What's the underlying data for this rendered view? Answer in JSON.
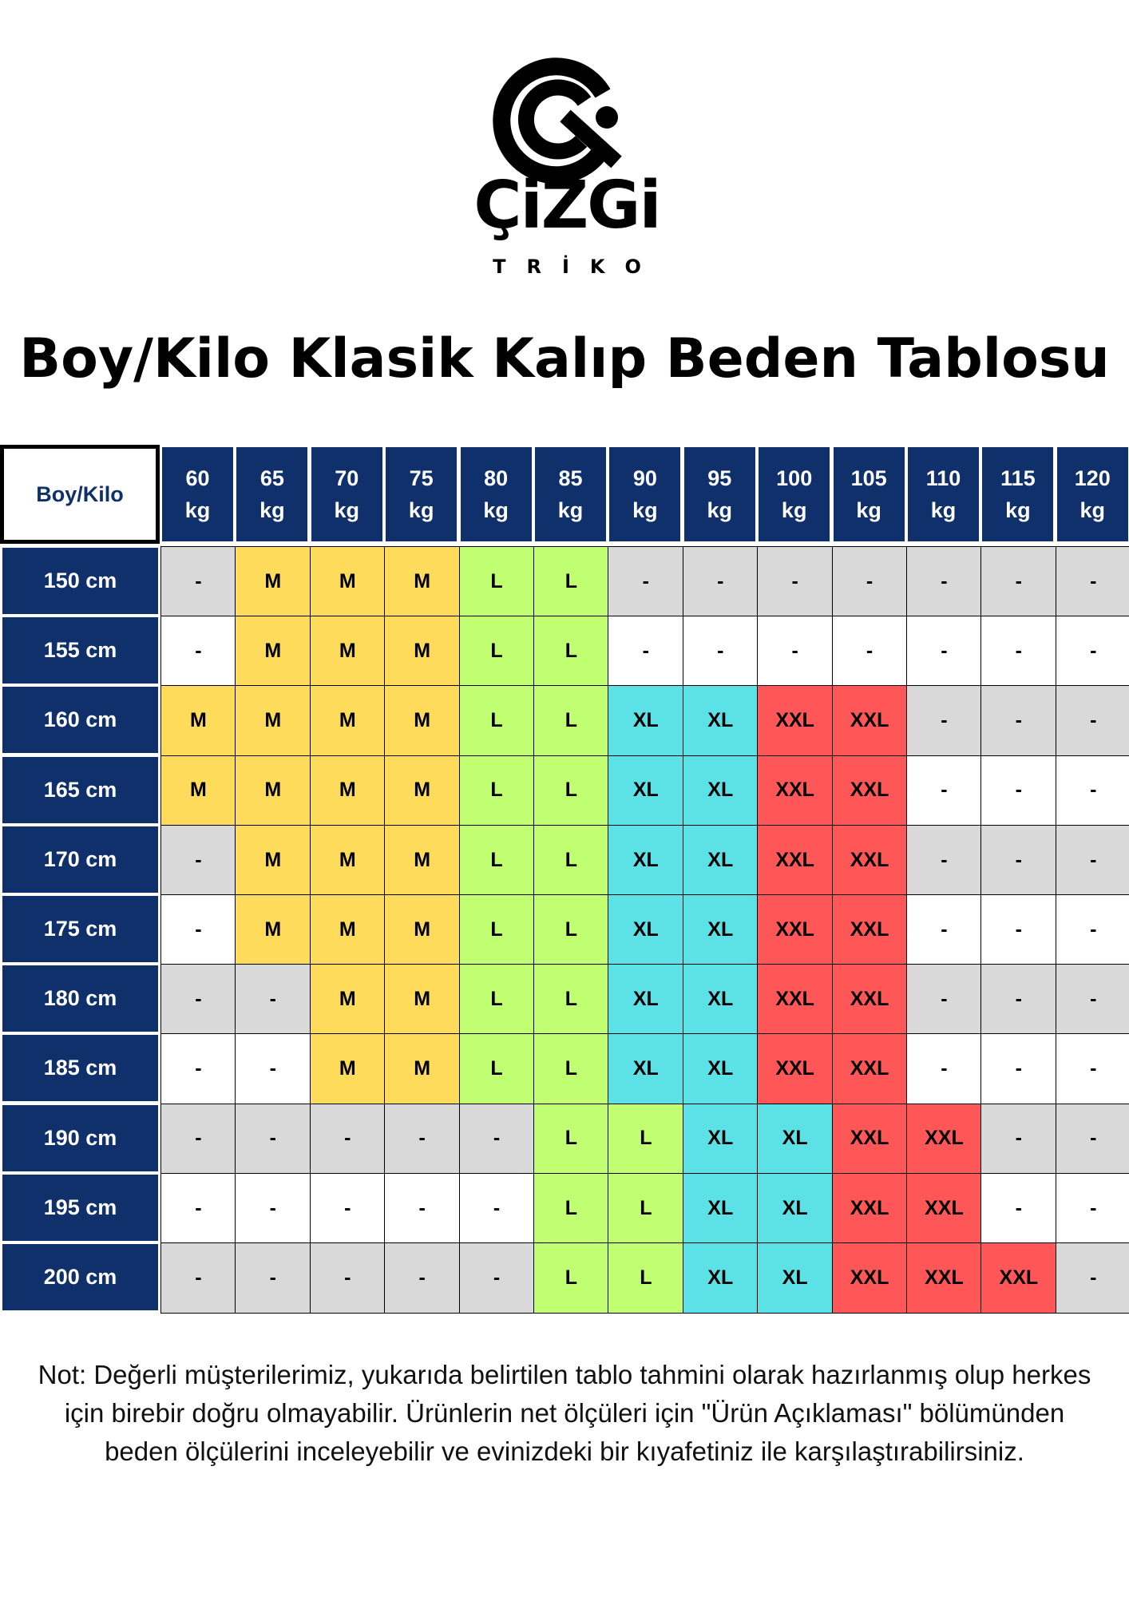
{
  "logo": {
    "word": "ÇiZGi",
    "sub": "TRİKO"
  },
  "title": "Boy/Kilo Klasik Kalıp Beden Tablosu",
  "table": {
    "corner": "Boy/Kilo",
    "columns": [
      {
        "value": "60",
        "unit": "kg"
      },
      {
        "value": "65",
        "unit": "kg"
      },
      {
        "value": "70",
        "unit": "kg"
      },
      {
        "value": "75",
        "unit": "kg"
      },
      {
        "value": "80",
        "unit": "kg"
      },
      {
        "value": "85",
        "unit": "kg"
      },
      {
        "value": "90",
        "unit": "kg"
      },
      {
        "value": "95",
        "unit": "kg"
      },
      {
        "value": "100",
        "unit": "kg"
      },
      {
        "value": "105",
        "unit": "kg"
      },
      {
        "value": "110",
        "unit": "kg"
      },
      {
        "value": "115",
        "unit": "kg"
      },
      {
        "value": "120",
        "unit": "kg"
      }
    ],
    "rows": [
      {
        "label": "150 cm",
        "cells": [
          "-",
          "M",
          "M",
          "M",
          "L",
          "L",
          "-",
          "-",
          "-",
          "-",
          "-",
          "-",
          "-"
        ]
      },
      {
        "label": "155 cm",
        "cells": [
          "-",
          "M",
          "M",
          "M",
          "L",
          "L",
          "-",
          "-",
          "-",
          "-",
          "-",
          "-",
          "-"
        ]
      },
      {
        "label": "160 cm",
        "cells": [
          "M",
          "M",
          "M",
          "M",
          "L",
          "L",
          "XL",
          "XL",
          "XXL",
          "XXL",
          "-",
          "-",
          "-"
        ]
      },
      {
        "label": "165 cm",
        "cells": [
          "M",
          "M",
          "M",
          "M",
          "L",
          "L",
          "XL",
          "XL",
          "XXL",
          "XXL",
          "-",
          "-",
          "-"
        ]
      },
      {
        "label": "170 cm",
        "cells": [
          "-",
          "M",
          "M",
          "M",
          "L",
          "L",
          "XL",
          "XL",
          "XXL",
          "XXL",
          "-",
          "-",
          "-"
        ]
      },
      {
        "label": "175 cm",
        "cells": [
          "-",
          "M",
          "M",
          "M",
          "L",
          "L",
          "XL",
          "XL",
          "XXL",
          "XXL",
          "-",
          "-",
          "-"
        ]
      },
      {
        "label": "180 cm",
        "cells": [
          "-",
          "-",
          "M",
          "M",
          "L",
          "L",
          "XL",
          "XL",
          "XXL",
          "XXL",
          "-",
          "-",
          "-"
        ]
      },
      {
        "label": "185 cm",
        "cells": [
          "-",
          "-",
          "M",
          "M",
          "L",
          "L",
          "XL",
          "XL",
          "XXL",
          "XXL",
          "-",
          "-",
          "-"
        ]
      },
      {
        "label": "190 cm",
        "cells": [
          "-",
          "-",
          "-",
          "-",
          "-",
          "L",
          "L",
          "XL",
          "XL",
          "XXL",
          "XXL",
          "-",
          "-"
        ]
      },
      {
        "label": "195 cm",
        "cells": [
          "-",
          "-",
          "-",
          "-",
          "-",
          "L",
          "L",
          "XL",
          "XL",
          "XXL",
          "XXL",
          "-",
          "-"
        ]
      },
      {
        "label": "200 cm",
        "cells": [
          "-",
          "-",
          "-",
          "-",
          "-",
          "L",
          "L",
          "XL",
          "XL",
          "XXL",
          "XXL",
          "XXL",
          "-"
        ]
      }
    ]
  },
  "colors": {
    "header": "#10306b",
    "M": "#ffdb5c",
    "L": "#c1ff72",
    "XL": "#5ce1e6",
    "XXL": "#ff5757",
    "empty_alt": "#d9d9d9",
    "empty": "#ffffff"
  },
  "note": "Not: Değerli müşterilerimiz, yukarıda belirtilen tablo tahmini olarak hazırlanmış olup herkes için birebir doğru olmayabilir. Ürünlerin net ölçüleri için \"Ürün Açıklaması\" bölümünden beden ölçülerini inceleyebilir ve evinizdeki bir kıyafetiniz ile karşılaştırabilirsiniz."
}
